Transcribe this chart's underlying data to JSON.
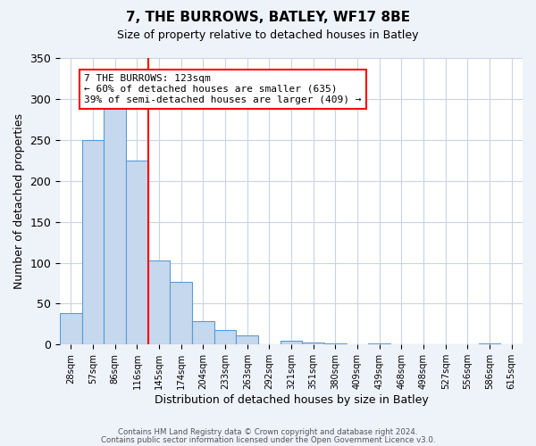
{
  "title": "7, THE BURROWS, BATLEY, WF17 8BE",
  "subtitle": "Size of property relative to detached houses in Batley",
  "xlabel": "Distribution of detached houses by size in Batley",
  "ylabel": "Number of detached properties",
  "bin_labels": [
    "28sqm",
    "57sqm",
    "86sqm",
    "116sqm",
    "145sqm",
    "174sqm",
    "204sqm",
    "233sqm",
    "263sqm",
    "292sqm",
    "321sqm",
    "351sqm",
    "380sqm",
    "409sqm",
    "439sqm",
    "468sqm",
    "498sqm",
    "527sqm",
    "556sqm",
    "586sqm",
    "615sqm"
  ],
  "bar_values": [
    38,
    250,
    291,
    225,
    103,
    77,
    29,
    18,
    11,
    0,
    5,
    3,
    1,
    0,
    1,
    0,
    0,
    0,
    0,
    1,
    0
  ],
  "bar_color": "#c5d8ed",
  "bar_edge_color": "#5b9bd5",
  "vline_x": 3.5,
  "vline_color": "red",
  "annotation_text": "7 THE BURROWS: 123sqm\n← 60% of detached houses are smaller (635)\n39% of semi-detached houses are larger (409) →",
  "annotation_box_color": "white",
  "annotation_box_edge_color": "red",
  "ylim": [
    0,
    350
  ],
  "yticks": [
    0,
    50,
    100,
    150,
    200,
    250,
    300,
    350
  ],
  "footer1": "Contains HM Land Registry data © Crown copyright and database right 2024.",
  "footer2": "Contains public sector information licensed under the Open Government Licence v3.0.",
  "background_color": "#eef2f9",
  "plot_bg_color": "white",
  "grid_color": "#c8d4e8"
}
